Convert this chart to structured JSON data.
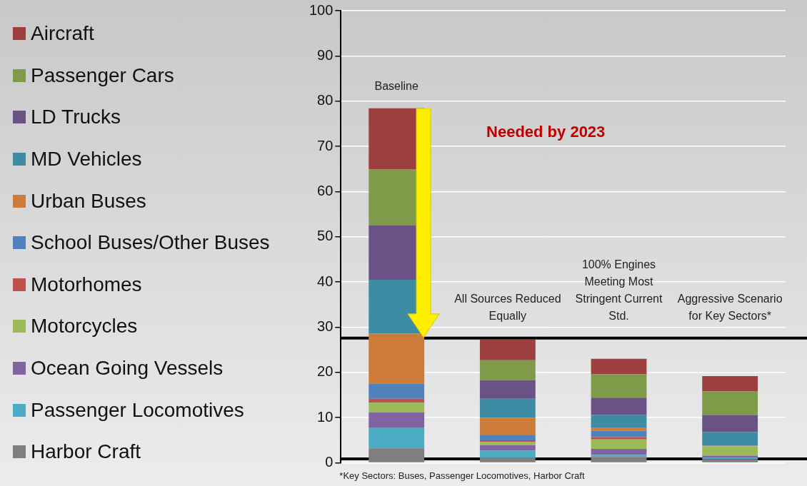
{
  "chart_data": {
    "type": "bar",
    "stacked": true,
    "categories": [
      null,
      null,
      null,
      null
    ],
    "series": [
      {
        "name": "Harbor Craft",
        "color": "#7f7f7f",
        "values": [
          3.2,
          1.2,
          1.3,
          0.8
        ]
      },
      {
        "name": "Passenger Locomotives",
        "color": "#4bacc6",
        "values": [
          4.5,
          1.5,
          0.5,
          0.4
        ]
      },
      {
        "name": "Ocean Going Vessels",
        "color": "#8064a2",
        "values": [
          3.5,
          1.2,
          1.3,
          0.4
        ]
      },
      {
        "name": "Motorcycles",
        "color": "#9bbb59",
        "values": [
          2.1,
          0.7,
          2.1,
          2.1
        ]
      },
      {
        "name": "Motorhomes",
        "color": "#c0504d",
        "values": [
          0.9,
          0.4,
          0.5,
          0
        ]
      },
      {
        "name": "School Buses/Other Buses",
        "color": "#4f81bd",
        "values": [
          3.3,
          1.1,
          1.4,
          0.1
        ]
      },
      {
        "name": "Urban Buses",
        "color": "#cd7b39",
        "values": [
          11.1,
          3.9,
          0.6,
          0.1
        ]
      },
      {
        "name": "MD Vehicles",
        "color": "#3d8ca3",
        "values": [
          11.9,
          4.2,
          2.9,
          2.9
        ]
      },
      {
        "name": "LD Trucks",
        "color": "#6a5186",
        "values": [
          12.0,
          4.1,
          3.8,
          3.8
        ]
      },
      {
        "name": "Passenger Cars",
        "color": "#7f9a48",
        "values": [
          12.4,
          4.4,
          5.2,
          5.2
        ]
      },
      {
        "name": "Aircraft",
        "color": "#9e3f3f",
        "values": [
          13.5,
          4.6,
          3.4,
          3.4
        ]
      }
    ],
    "ylim": [
      0,
      100
    ],
    "yticks": [
      0,
      10,
      20,
      30,
      40,
      50,
      60,
      70,
      80,
      90,
      100
    ],
    "grid": "y",
    "legend": "left",
    "ref_lines": [
      {
        "axis": "y",
        "value": 27.6,
        "color": "#000000"
      },
      {
        "axis": "y",
        "value": 0.9,
        "color": "#000000"
      }
    ],
    "annotations": [
      "Baseline",
      "All Sources Reduced Equally",
      "100% Engines Meeting Most Stringent Current Std.",
      "Aggressive Scenario for Key Sectors*",
      "Needed by 2023",
      "*Key Sectors: Buses, Passenger Locomotives, Harbor Craft"
    ]
  }
}
